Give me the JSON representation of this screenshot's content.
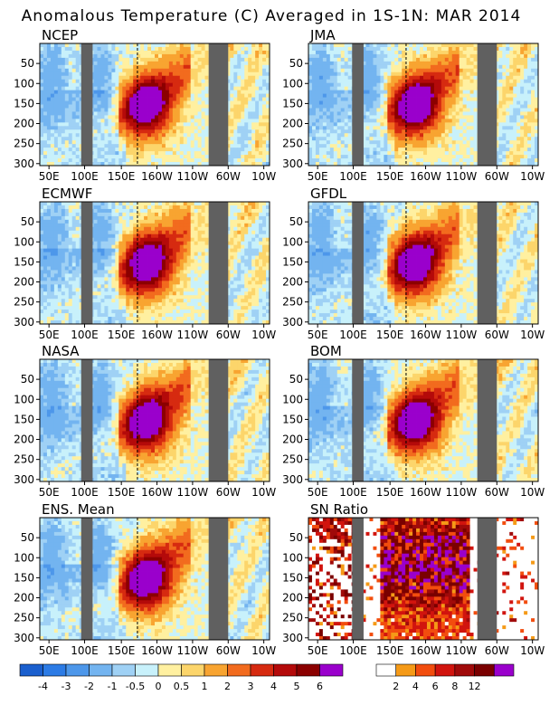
{
  "title": "Anomalous Temperature (C) Averaged in 1S-1N: MAR 2014",
  "x_tick_labels": [
    "50E",
    "100E",
    "150E",
    "160W",
    "110W",
    "60W",
    "10W"
  ],
  "y_tick_labels": [
    "50",
    "100",
    "150",
    "200",
    "250",
    "300"
  ],
  "panels": [
    {
      "label": "NCEP"
    },
    {
      "label": "JMA"
    },
    {
      "label": "ECMWF"
    },
    {
      "label": "GFDL"
    },
    {
      "label": "NASA"
    },
    {
      "label": "BOM"
    },
    {
      "label": "ENS. Mean"
    },
    {
      "label": "SN Ratio"
    }
  ],
  "colorbar_anomaly": {
    "labels": [
      "-4",
      "-3",
      "-2",
      "-1",
      "-0.5",
      "0",
      "0.5",
      "1",
      "2",
      "3",
      "4",
      "5",
      "6"
    ],
    "colors": [
      "#1a5fce",
      "#2c7be5",
      "#4d97ea",
      "#73b4f0",
      "#9fd1f5",
      "#c8f1fb",
      "#fff0a0",
      "#fcd56b",
      "#f8a431",
      "#f26b1e",
      "#d62a10",
      "#b40a0a",
      "#8b0000",
      "#9a00cc"
    ]
  },
  "colorbar_sn": {
    "labels": [
      "2",
      "4",
      "6",
      "8",
      "12"
    ],
    "colors": [
      "#ffffff",
      "#f59a17",
      "#f24d0e",
      "#d1140e",
      "#a00a0a",
      "#7a0000",
      "#9a00cc"
    ]
  },
  "land_mask_color": "#606060",
  "chart_data": [
    {
      "type": "heatmap",
      "panel": "NCEP",
      "xlabel": "",
      "ylabel": "",
      "x_categories": [
        "50E",
        "100E",
        "150E",
        "160W",
        "110W",
        "60W",
        "10W"
      ],
      "y_range": [
        300,
        0
      ],
      "note_values": "Temperature anomaly (C) along the equator vs depth (m); strongest warm core ~6 near 160W at 150-175 m"
    }
  ]
}
